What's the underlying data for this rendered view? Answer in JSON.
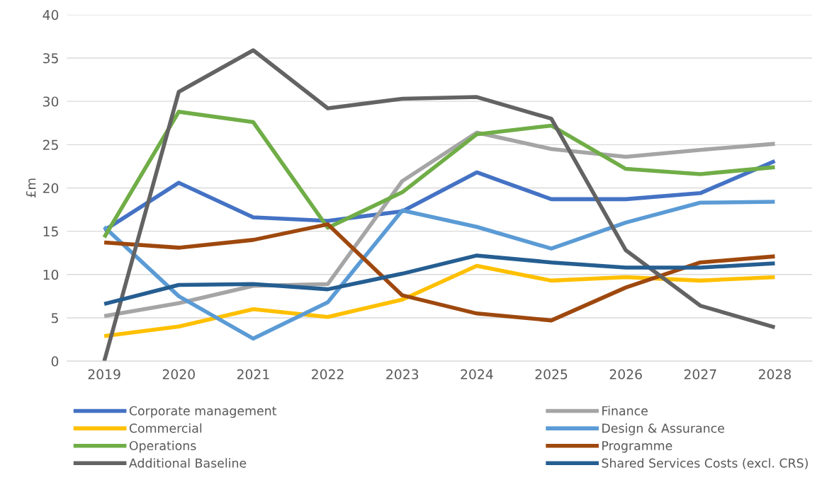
{
  "chart_data": {
    "type": "line",
    "ylabel": "£m",
    "categories": [
      "2019",
      "2020",
      "2021",
      "2022",
      "2023",
      "2024",
      "2025",
      "2026",
      "2027",
      "2028"
    ],
    "ylim": [
      0,
      40
    ],
    "yticks": [
      0,
      5,
      10,
      15,
      20,
      25,
      30,
      35,
      40
    ],
    "grid": "y",
    "legend": "bottom",
    "marker": "none",
    "line_style": "solid",
    "series": [
      {
        "name": "Corporate management",
        "color": "#4472c4",
        "values": [
          15.1,
          20.6,
          16.6,
          16.2,
          17.3,
          21.8,
          18.7,
          18.7,
          19.4,
          23.1
        ]
      },
      {
        "name": "Finance",
        "color": "#a5a5a5",
        "values": [
          5.2,
          6.7,
          8.7,
          8.9,
          20.8,
          26.4,
          24.5,
          23.6,
          24.4,
          25.1
        ]
      },
      {
        "name": "Commercial",
        "color": "#ffc000",
        "values": [
          2.9,
          4.0,
          6.0,
          5.1,
          7.1,
          11.0,
          9.3,
          9.7,
          9.3,
          9.7
        ]
      },
      {
        "name": "Design & Assurance",
        "color": "#5b9bd5",
        "values": [
          15.5,
          7.5,
          2.6,
          6.8,
          17.4,
          15.5,
          13.0,
          16.0,
          18.3,
          18.4
        ]
      },
      {
        "name": "Operations",
        "color": "#70ad47",
        "values": [
          14.3,
          28.8,
          27.6,
          15.4,
          19.5,
          26.2,
          27.2,
          22.2,
          21.6,
          22.4
        ]
      },
      {
        "name": "Programme",
        "color": "#9e480e",
        "values": [
          13.7,
          13.1,
          14.0,
          15.8,
          7.6,
          5.5,
          4.7,
          8.5,
          11.4,
          12.1
        ]
      },
      {
        "name": "Additional Baseline",
        "color": "#636363",
        "values": [
          0,
          31.1,
          35.9,
          29.2,
          30.3,
          30.5,
          28.0,
          12.8,
          6.4,
          3.9
        ]
      },
      {
        "name": "Shared Services Costs (excl. CRS)",
        "color": "#255e91",
        "values": [
          6.6,
          8.8,
          8.9,
          8.3,
          10.1,
          12.2,
          11.4,
          10.8,
          10.8,
          11.3
        ]
      }
    ]
  }
}
